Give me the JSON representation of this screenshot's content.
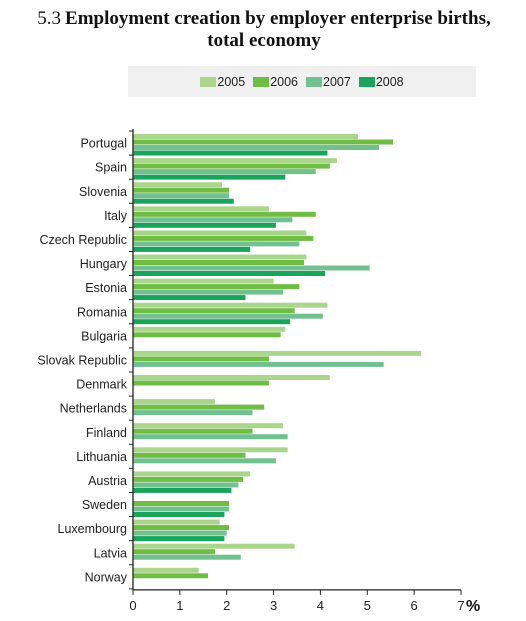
{
  "title": {
    "number": "5.3",
    "text_line1": "Employment creation by employer enterprise births,",
    "text_line2": "total economy"
  },
  "colors": {
    "2005": "#a9d58c",
    "2006": "#6fbd44",
    "2007": "#72c08f",
    "2008": "#1aa35a"
  },
  "chart_data": {
    "type": "bar",
    "orientation": "horizontal",
    "categories": [
      "Portugal",
      "Spain",
      "Slovenia",
      "Italy",
      "Czech Republic",
      "Hungary",
      "Estonia",
      "Romania",
      "Bulgaria",
      "Slovak Republic",
      "Denmark",
      "Netherlands",
      "Finland",
      "Lithuania",
      "Austria",
      "Sweden",
      "Luxembourg",
      "Latvia",
      "Norway"
    ],
    "series": [
      {
        "name": "2005",
        "values": [
          4.8,
          4.35,
          1.9,
          2.9,
          3.7,
          3.7,
          3.0,
          4.15,
          3.25,
          6.15,
          4.2,
          1.75,
          3.2,
          3.3,
          2.5,
          null,
          1.85,
          3.45,
          1.4
        ]
      },
      {
        "name": "2006",
        "values": [
          5.55,
          4.2,
          2.05,
          3.9,
          3.85,
          3.65,
          3.55,
          3.45,
          3.15,
          2.9,
          2.9,
          2.8,
          2.55,
          2.4,
          2.35,
          2.05,
          2.05,
          1.75,
          1.6
        ]
      },
      {
        "name": "2007",
        "values": [
          5.25,
          3.9,
          2.05,
          3.4,
          3.55,
          5.05,
          3.2,
          4.05,
          null,
          5.35,
          null,
          2.55,
          3.3,
          3.05,
          2.25,
          2.05,
          2.0,
          2.3,
          null
        ]
      },
      {
        "name": "2008",
        "values": [
          4.15,
          3.25,
          2.15,
          3.05,
          2.5,
          4.1,
          2.4,
          3.35,
          null,
          null,
          null,
          null,
          null,
          null,
          2.1,
          1.95,
          1.95,
          null,
          null
        ]
      }
    ],
    "xlim": [
      0,
      7
    ],
    "xticks": [
      "0",
      "1",
      "2",
      "3",
      "4",
      "5",
      "6",
      "7"
    ],
    "xunit": "%",
    "legend_position": "top",
    "grid": false
  }
}
